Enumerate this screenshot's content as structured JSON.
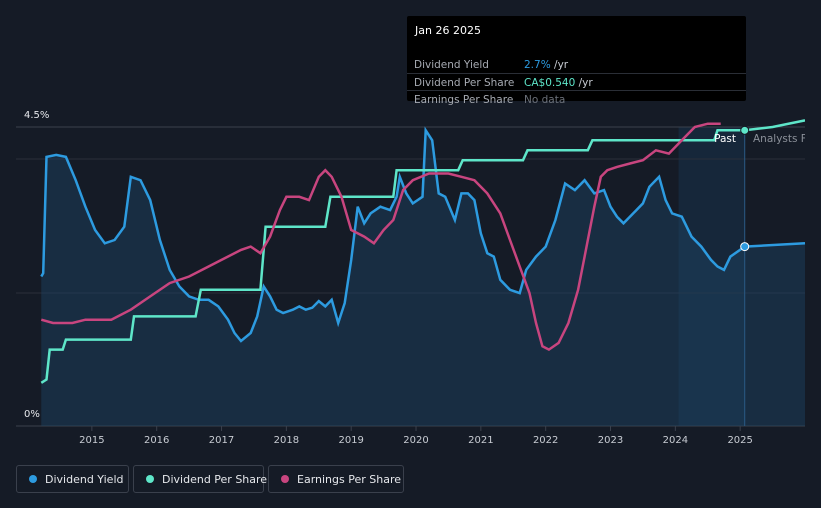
{
  "colors": {
    "background": "#151b26",
    "dividend_yield": "#2d9be0",
    "dividend_per_share": "#5ee6c9",
    "earnings_per_share": "#c8457f",
    "forecast_band": "#18314a"
  },
  "tooltip": {
    "date": "Jan 26 2025",
    "rows": [
      {
        "label": "Dividend Yield",
        "value": "2.7%",
        "unit": " /yr",
        "color": "#2d9be0"
      },
      {
        "label": "Dividend Per Share",
        "value": "CA$0.540",
        "unit": " /yr",
        "color": "#5ee6c9"
      },
      {
        "label": "Earnings Per Share",
        "value": "No data",
        "unit": "",
        "color": "#6b7079"
      }
    ]
  },
  "legend": {
    "items": [
      {
        "label": "Dividend Yield",
        "color": "#2d9be0"
      },
      {
        "label": "Dividend Per Share",
        "color": "#5ee6c9"
      },
      {
        "label": "Earnings Per Share",
        "color": "#c8457f"
      }
    ]
  },
  "chart_data": {
    "type": "line",
    "title": "",
    "x_range": [
      2014.2,
      2026.0
    ],
    "y_range_pct": [
      0,
      4.5
    ],
    "y_axis_labels": [
      "4.5%",
      "0%"
    ],
    "x_ticks": [
      "2015",
      "2016",
      "2017",
      "2018",
      "2019",
      "2020",
      "2021",
      "2022",
      "2023",
      "2024",
      "2025"
    ],
    "x_tick_values": [
      2015,
      2016,
      2017,
      2018,
      2019,
      2020,
      2021,
      2022,
      2023,
      2024,
      2025
    ],
    "forecast_start": 2024.05,
    "cursor_x": 2025.07,
    "past_label": "Past",
    "forecast_label": "Analysts Forecasts",
    "series": [
      {
        "name": "Dividend Yield",
        "unit": "%",
        "points": [
          [
            2014.22,
            2.25
          ],
          [
            2014.25,
            2.3
          ],
          [
            2014.3,
            4.05
          ],
          [
            2014.45,
            4.08
          ],
          [
            2014.6,
            4.05
          ],
          [
            2014.75,
            3.7
          ],
          [
            2014.9,
            3.3
          ],
          [
            2015.05,
            2.95
          ],
          [
            2015.2,
            2.75
          ],
          [
            2015.35,
            2.8
          ],
          [
            2015.5,
            3.0
          ],
          [
            2015.6,
            3.75
          ],
          [
            2015.75,
            3.7
          ],
          [
            2015.9,
            3.4
          ],
          [
            2016.05,
            2.8
          ],
          [
            2016.2,
            2.35
          ],
          [
            2016.35,
            2.1
          ],
          [
            2016.5,
            1.95
          ],
          [
            2016.65,
            1.9
          ],
          [
            2016.8,
            1.9
          ],
          [
            2016.95,
            1.8
          ],
          [
            2017.1,
            1.6
          ],
          [
            2017.2,
            1.4
          ],
          [
            2017.3,
            1.28
          ],
          [
            2017.45,
            1.4
          ],
          [
            2017.55,
            1.65
          ],
          [
            2017.65,
            2.1
          ],
          [
            2017.75,
            1.95
          ],
          [
            2017.85,
            1.75
          ],
          [
            2017.95,
            1.7
          ],
          [
            2018.1,
            1.75
          ],
          [
            2018.2,
            1.8
          ],
          [
            2018.3,
            1.75
          ],
          [
            2018.4,
            1.78
          ],
          [
            2018.5,
            1.88
          ],
          [
            2018.6,
            1.8
          ],
          [
            2018.7,
            1.9
          ],
          [
            2018.8,
            1.55
          ],
          [
            2018.9,
            1.85
          ],
          [
            2019.0,
            2.5
          ],
          [
            2019.1,
            3.3
          ],
          [
            2019.2,
            3.05
          ],
          [
            2019.3,
            3.2
          ],
          [
            2019.45,
            3.3
          ],
          [
            2019.6,
            3.25
          ],
          [
            2019.7,
            3.45
          ],
          [
            2019.75,
            3.75
          ],
          [
            2019.85,
            3.5
          ],
          [
            2019.95,
            3.35
          ],
          [
            2020.1,
            3.45
          ],
          [
            2020.15,
            4.45
          ],
          [
            2020.25,
            4.3
          ],
          [
            2020.35,
            3.5
          ],
          [
            2020.45,
            3.45
          ],
          [
            2020.6,
            3.1
          ],
          [
            2020.7,
            3.5
          ],
          [
            2020.8,
            3.5
          ],
          [
            2020.9,
            3.4
          ],
          [
            2021.0,
            2.9
          ],
          [
            2021.1,
            2.6
          ],
          [
            2021.2,
            2.55
          ],
          [
            2021.3,
            2.2
          ],
          [
            2021.45,
            2.05
          ],
          [
            2021.6,
            2.0
          ],
          [
            2021.7,
            2.35
          ],
          [
            2021.85,
            2.55
          ],
          [
            2022.0,
            2.7
          ],
          [
            2022.15,
            3.1
          ],
          [
            2022.3,
            3.65
          ],
          [
            2022.45,
            3.55
          ],
          [
            2022.6,
            3.7
          ],
          [
            2022.75,
            3.5
          ],
          [
            2022.9,
            3.55
          ],
          [
            2023.0,
            3.3
          ],
          [
            2023.1,
            3.15
          ],
          [
            2023.2,
            3.05
          ],
          [
            2023.35,
            3.2
          ],
          [
            2023.5,
            3.35
          ],
          [
            2023.6,
            3.6
          ],
          [
            2023.75,
            3.75
          ],
          [
            2023.85,
            3.4
          ],
          [
            2023.95,
            3.2
          ],
          [
            2024.1,
            3.15
          ],
          [
            2024.25,
            2.85
          ],
          [
            2024.4,
            2.7
          ],
          [
            2024.55,
            2.5
          ],
          [
            2024.65,
            2.4
          ],
          [
            2024.75,
            2.35
          ],
          [
            2024.85,
            2.55
          ],
          [
            2025.07,
            2.7
          ],
          [
            2026.0,
            2.75
          ]
        ]
      },
      {
        "name": "Dividend Per Share",
        "unit": "CA$",
        "points": [
          [
            2014.22,
            0.65
          ],
          [
            2014.3,
            0.7
          ],
          [
            2014.35,
            1.15
          ],
          [
            2014.55,
            1.15
          ],
          [
            2014.6,
            1.3
          ],
          [
            2015.6,
            1.3
          ],
          [
            2015.65,
            1.65
          ],
          [
            2016.6,
            1.65
          ],
          [
            2016.68,
            2.05
          ],
          [
            2017.6,
            2.05
          ],
          [
            2017.68,
            3.0
          ],
          [
            2018.6,
            3.0
          ],
          [
            2018.68,
            3.45
          ],
          [
            2019.65,
            3.45
          ],
          [
            2019.7,
            3.85
          ],
          [
            2020.65,
            3.85
          ],
          [
            2020.72,
            4.0
          ],
          [
            2021.65,
            4.0
          ],
          [
            2021.72,
            4.15
          ],
          [
            2022.65,
            4.15
          ],
          [
            2022.72,
            4.3
          ],
          [
            2024.6,
            4.3
          ],
          [
            2024.65,
            4.45
          ],
          [
            2025.07,
            4.45
          ],
          [
            2025.5,
            4.5
          ],
          [
            2026.0,
            4.6
          ]
        ]
      },
      {
        "name": "Earnings Per Share",
        "unit": "CA$",
        "points": [
          [
            2014.22,
            1.6
          ],
          [
            2014.4,
            1.55
          ],
          [
            2014.7,
            1.55
          ],
          [
            2014.9,
            1.6
          ],
          [
            2015.3,
            1.6
          ],
          [
            2015.6,
            1.75
          ],
          [
            2015.9,
            1.95
          ],
          [
            2016.2,
            2.15
          ],
          [
            2016.5,
            2.25
          ],
          [
            2016.8,
            2.4
          ],
          [
            2017.0,
            2.5
          ],
          [
            2017.3,
            2.65
          ],
          [
            2017.45,
            2.7
          ],
          [
            2017.6,
            2.6
          ],
          [
            2017.75,
            2.85
          ],
          [
            2017.9,
            3.25
          ],
          [
            2018.0,
            3.45
          ],
          [
            2018.2,
            3.45
          ],
          [
            2018.35,
            3.4
          ],
          [
            2018.5,
            3.75
          ],
          [
            2018.6,
            3.85
          ],
          [
            2018.7,
            3.75
          ],
          [
            2018.85,
            3.45
          ],
          [
            2019.0,
            2.95
          ],
          [
            2019.2,
            2.85
          ],
          [
            2019.35,
            2.75
          ],
          [
            2019.5,
            2.95
          ],
          [
            2019.65,
            3.1
          ],
          [
            2019.8,
            3.55
          ],
          [
            2019.95,
            3.7
          ],
          [
            2020.2,
            3.8
          ],
          [
            2020.5,
            3.8
          ],
          [
            2020.7,
            3.75
          ],
          [
            2020.9,
            3.7
          ],
          [
            2021.1,
            3.5
          ],
          [
            2021.3,
            3.2
          ],
          [
            2021.45,
            2.8
          ],
          [
            2021.6,
            2.4
          ],
          [
            2021.75,
            2.0
          ],
          [
            2021.85,
            1.55
          ],
          [
            2021.95,
            1.2
          ],
          [
            2022.05,
            1.15
          ],
          [
            2022.2,
            1.25
          ],
          [
            2022.35,
            1.55
          ],
          [
            2022.5,
            2.05
          ],
          [
            2022.6,
            2.55
          ],
          [
            2022.75,
            3.3
          ],
          [
            2022.85,
            3.75
          ],
          [
            2022.95,
            3.85
          ],
          [
            2023.1,
            3.9
          ],
          [
            2023.3,
            3.95
          ],
          [
            2023.5,
            4.0
          ],
          [
            2023.7,
            4.15
          ],
          [
            2023.9,
            4.1
          ],
          [
            2024.1,
            4.3
          ],
          [
            2024.3,
            4.5
          ],
          [
            2024.5,
            4.55
          ],
          [
            2024.7,
            4.55
          ]
        ]
      }
    ]
  }
}
